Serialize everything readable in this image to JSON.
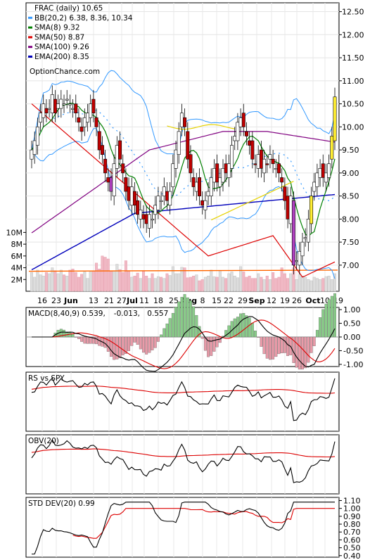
{
  "chart_data": [
    {
      "type": "line",
      "panel": "price",
      "legend": [
        {
          "label": "FRAC (daily) 10.65",
          "color": "#ffffff"
        },
        {
          "label": "BB(20,2) 6.38, 8.36, 10.34",
          "color": "#3399ff"
        },
        {
          "label": "SMA(8) 9.32",
          "color": "#008000"
        },
        {
          "label": "SMA(50) 8.87",
          "color": "#dd0000"
        },
        {
          "label": "SMA(100) 9.26",
          "color": "#800080"
        },
        {
          "label": "EMA(200) 8.35",
          "color": "#0000bb"
        }
      ],
      "watermark": "OptionChance.com",
      "x_ticks": [
        "16",
        "23",
        "Jun",
        "13",
        "21",
        "27",
        "Jul",
        "11",
        "18",
        "25",
        "Aug",
        "8",
        "15",
        "22",
        "29",
        "Sep",
        "12",
        "19",
        "26",
        "Oct",
        "10",
        "19"
      ],
      "y_ticks": [
        "12.50",
        "12.00",
        "11.50",
        "11.00",
        "10.50",
        "10.00",
        "9.50",
        "9.00",
        "8.50",
        "8.00",
        "7.50",
        "7.00"
      ],
      "ylim": [
        6.8,
        12.6
      ],
      "volume_ticks": [
        "10M",
        "8M",
        "6M",
        "4M",
        "2M"
      ],
      "volume_ylim": [
        0,
        11
      ],
      "close": [
        9.5,
        9.7,
        10.0,
        10.3,
        10.5,
        10.3,
        10.4,
        10.7,
        10.3,
        10.5,
        10.6,
        10.5,
        10.6,
        10.5,
        10.4,
        10.3,
        10.1,
        9.9,
        10.2,
        10.3,
        10.5,
        10.3,
        10.0,
        9.5,
        9.4,
        9.0,
        8.8,
        8.6,
        9.2,
        9.6,
        9.3,
        9.0,
        8.6,
        8.4,
        8.7,
        8.3,
        8.1,
        8.2,
        8.0,
        7.9,
        8.1,
        8.0,
        8.3,
        8.5,
        8.4,
        8.7,
        8.4,
        8.6,
        9.2,
        9.5,
        9.9,
        10.3,
        10.0,
        9.3,
        9.0,
        8.7,
        8.8,
        8.5,
        8.3,
        8.4,
        8.6,
        8.9,
        9.1,
        8.8,
        8.9,
        9.1,
        9.0,
        9.2,
        9.6,
        9.8,
        10.1,
        10.2,
        10.0,
        9.8,
        9.6,
        9.3,
        9.2,
        9.4,
        9.1,
        9.3,
        9.2,
        9.4,
        9.2,
        9.1,
        9.0,
        8.8,
        8.4,
        8.0,
        8.5,
        7.0,
        7.1,
        7.3,
        7.5,
        7.6,
        8.0,
        8.5,
        8.8,
        9.0,
        9.1,
        8.9,
        9.0,
        9.2,
        9.8,
        10.65
      ],
      "vol_avg": 3.4,
      "volume_M": [
        3.2,
        2.4,
        3.6,
        2.8,
        2.6,
        3.2,
        3.0,
        4.0,
        3.5,
        3.0,
        3.6,
        2.8,
        2.6,
        3.6,
        3.8,
        3.2,
        2.4,
        2.9,
        3.3,
        2.2,
        3.3,
        3.4,
        4.8,
        3.8,
        6.0,
        5.8,
        5.5,
        3.4,
        3.5,
        4.6,
        3.7,
        3.2,
        5.2,
        3.5,
        2.4,
        2.6,
        3.1,
        2.2,
        3.4,
        2.6,
        2.2,
        3.0,
        2.2,
        2.5,
        2.4,
        2.2,
        3.0,
        2.7,
        4.2,
        3.0,
        3.0,
        4.1,
        4.0,
        2.3,
        2.4,
        2.6,
        2.8,
        1.8,
        2.0,
        2.4,
        2.6,
        3.6,
        2.5,
        2.4,
        3.5,
        2.4,
        2.2,
        3.0,
        3.3,
        2.6,
        2.3,
        4.2,
        3.3,
        2.4,
        2.6,
        2.2,
        2.2,
        3.0,
        2.4,
        2.0,
        2.6,
        2.0,
        3.2,
        2.2,
        2.4,
        4.0,
        3.0,
        2.2,
        3.0,
        4.0,
        2.0,
        2.8,
        2.6,
        2.4,
        2.0,
        1.8,
        2.4,
        2.2,
        2.0,
        2.2,
        2.5,
        2.6,
        2.0,
        3.0
      ]
    },
    {
      "type": "line",
      "panel": "macd",
      "legend": [
        {
          "label": "MACD(8,40,9) 0.539,",
          "color": "#000000"
        },
        {
          "label": "-0.013,",
          "color": "#cc0000"
        },
        {
          "label": "0.557",
          "color": "#1a5fd0"
        }
      ],
      "y_ticks": [
        "1.00",
        "0.50",
        "0.00",
        "-0.50",
        "-1.00"
      ],
      "ylim": [
        -1.08,
        1.08
      ]
    },
    {
      "type": "line",
      "panel": "rs",
      "legend": [
        {
          "label": "RS vs SPY",
          "color": "#000000"
        }
      ],
      "y_ticks": []
    },
    {
      "type": "line",
      "panel": "obv",
      "legend": [
        {
          "label": "OBV(20)",
          "color": "#000000"
        }
      ],
      "y_ticks": []
    },
    {
      "type": "line",
      "panel": "stddev",
      "legend": [
        {
          "label": "STD DEV(20) 0.99",
          "color": "#000000"
        }
      ],
      "y_ticks": [
        "1.10",
        "1.00",
        "0.90",
        "0.80",
        "0.70",
        "0.60",
        "0.50",
        "0.40"
      ],
      "ylim": [
        0.38,
        1.14
      ]
    }
  ]
}
